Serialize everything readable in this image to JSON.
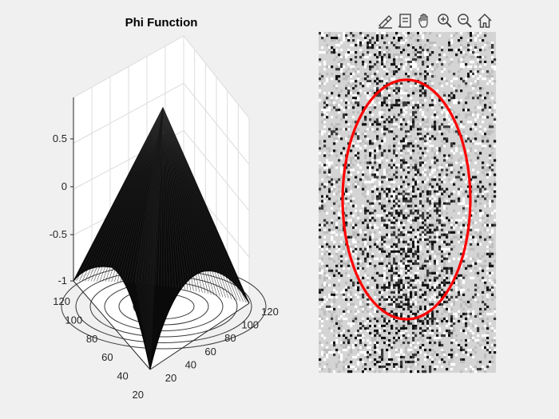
{
  "figure": {
    "title": "Phi Function",
    "toolbar": [
      "brush-icon",
      "data-tip-icon",
      "pan-hand-icon",
      "zoom-in-icon",
      "zoom-out-icon",
      "home-icon"
    ]
  },
  "left_axes": {
    "z_ticks": [
      "0.5",
      "0",
      "-0.5",
      "-1"
    ],
    "x_ticks": [
      "120",
      "100",
      "80",
      "60",
      "40",
      "20"
    ],
    "y_ticks": [
      "20",
      "40",
      "60",
      "80",
      "100",
      "120"
    ]
  },
  "right_image": {
    "contour_color": "#ff0000"
  },
  "chart_data": [
    {
      "type": "surface",
      "title": "Phi Function",
      "x_ticks": [
        20,
        40,
        60,
        80,
        100,
        120
      ],
      "y_ticks": [
        20,
        40,
        60,
        80,
        100,
        120
      ],
      "z_ticks": [
        -1,
        -0.5,
        0,
        0.5
      ],
      "zlim": [
        -1,
        0.8
      ],
      "surface_color": "#000000",
      "contour_color": "#000000"
    },
    {
      "type": "image",
      "colormap": "gray",
      "overlay": "red-contour-ellipse"
    }
  ]
}
